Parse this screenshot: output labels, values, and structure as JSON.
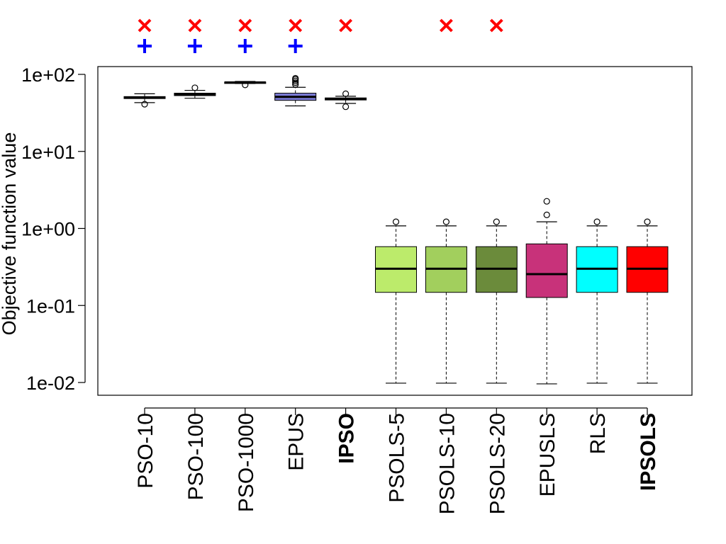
{
  "chart_data": {
    "type": "boxplot",
    "ylabel": "Objective function value",
    "yscale": "log",
    "ylim": [
      0.0065,
      120
    ],
    "yticks": [
      {
        "value": 100,
        "label": "1e+02"
      },
      {
        "value": 10,
        "label": "1e+01"
      },
      {
        "value": 1,
        "label": "1e+00"
      },
      {
        "value": 0.1,
        "label": "1e-01"
      },
      {
        "value": 0.01,
        "label": "1e-02"
      }
    ],
    "categories": [
      {
        "name": "PSO-10",
        "bold": false,
        "color": "#ffffff",
        "whisker_low": 43,
        "q1": 48.5,
        "median": 50,
        "q3": 51.5,
        "whisker_high": 56,
        "outliers": [
          41
        ],
        "markers": [
          "x",
          "plus"
        ]
      },
      {
        "name": "PSO-100",
        "bold": false,
        "color": "#ffffff",
        "whisker_low": 49,
        "q1": 53,
        "median": 55,
        "q3": 57,
        "whisker_high": 62,
        "outliers": [
          67
        ],
        "markers": [
          "x",
          "plus"
        ]
      },
      {
        "name": "PSO-1000",
        "bold": false,
        "color": "#ffffff",
        "whisker_low": 76,
        "q1": 77.5,
        "median": 78.5,
        "q3": 79.5,
        "whisker_high": 81,
        "outliers": [
          73
        ],
        "markers": [
          "x",
          "plus"
        ]
      },
      {
        "name": "EPUS",
        "bold": false,
        "color": "#7b7bd6",
        "whisker_low": 39,
        "q1": 46,
        "median": 51,
        "q3": 57,
        "whisker_high": 68,
        "outliers": [
          74,
          78,
          82,
          86,
          89
        ],
        "markers": [
          "x",
          "plus"
        ]
      },
      {
        "name": "IPSO",
        "bold": true,
        "color": "#ffffff",
        "whisker_low": 42,
        "q1": 46.5,
        "median": 48,
        "q3": 49.5,
        "whisker_high": 52,
        "outliers": [
          38,
          56
        ],
        "markers": [
          "x"
        ]
      },
      {
        "name": "PSOLS-5",
        "bold": false,
        "color": "#bceb6b",
        "whisker_low": 0.0098,
        "q1": 0.148,
        "median": 0.3,
        "q3": 0.58,
        "whisker_high": 1.08,
        "outliers": [
          1.22
        ],
        "markers": []
      },
      {
        "name": "PSOLS-10",
        "bold": false,
        "color": "#a2cf5d",
        "whisker_low": 0.0098,
        "q1": 0.148,
        "median": 0.3,
        "q3": 0.58,
        "whisker_high": 1.08,
        "outliers": [
          1.22
        ],
        "markers": [
          "x"
        ]
      },
      {
        "name": "PSOLS-20",
        "bold": false,
        "color": "#6b8b3b",
        "whisker_low": 0.0098,
        "q1": 0.148,
        "median": 0.3,
        "q3": 0.58,
        "whisker_high": 1.08,
        "outliers": [
          1.22
        ],
        "markers": [
          "x"
        ]
      },
      {
        "name": "EPUSLS",
        "bold": false,
        "color": "#c8327a",
        "whisker_low": 0.0096,
        "q1": 0.127,
        "median": 0.255,
        "q3": 0.63,
        "whisker_high": 1.22,
        "outliers": [
          1.5,
          2.25
        ],
        "markers": []
      },
      {
        "name": "RLS",
        "bold": false,
        "color": "#00ffff",
        "whisker_low": 0.0098,
        "q1": 0.148,
        "median": 0.3,
        "q3": 0.58,
        "whisker_high": 1.08,
        "outliers": [
          1.22
        ],
        "markers": []
      },
      {
        "name": "IPSOLS",
        "bold": true,
        "color": "#ff0000",
        "whisker_low": 0.0098,
        "q1": 0.148,
        "median": 0.3,
        "q3": 0.58,
        "whisker_high": 1.08,
        "outliers": [
          1.22
        ],
        "markers": []
      }
    ],
    "marker_colors": {
      "x": "#ff0000",
      "plus": "#0000ff"
    },
    "grid": false,
    "legend": "none"
  }
}
